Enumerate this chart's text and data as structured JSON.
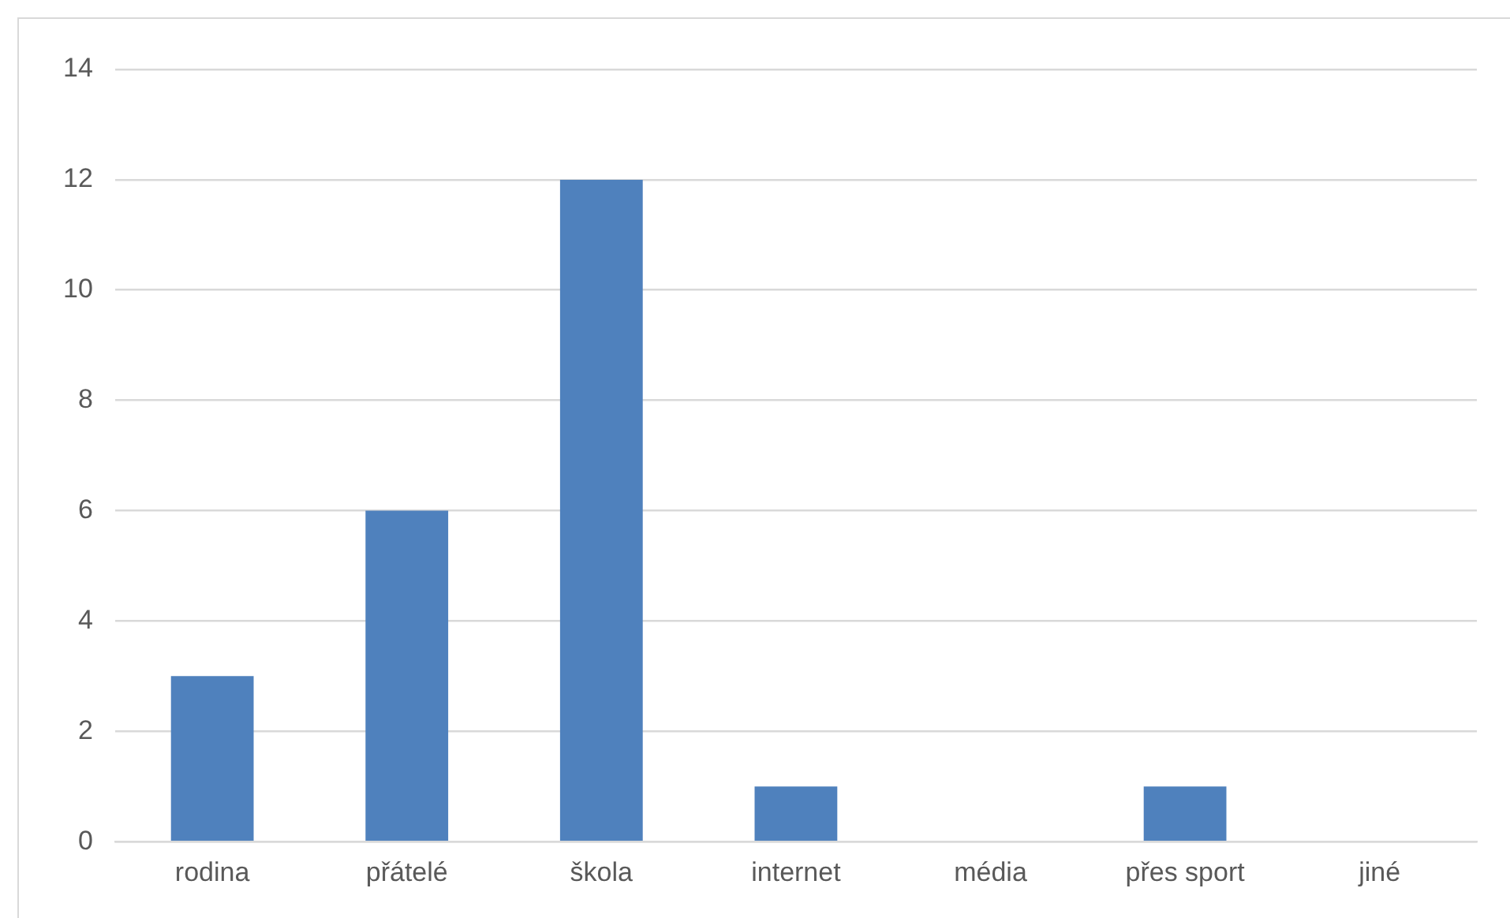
{
  "chart_data": {
    "type": "bar",
    "categories": [
      "rodina",
      "přátelé",
      "škola",
      "internet",
      "média",
      "přes sport",
      "jiné"
    ],
    "values": [
      3,
      6,
      12,
      1,
      0,
      1,
      0
    ],
    "color": "#4f81bd",
    "ylim": [
      0,
      14
    ],
    "yticks": [
      0,
      2,
      4,
      6,
      8,
      10,
      12,
      14
    ],
    "grid": "y",
    "legend": false
  }
}
